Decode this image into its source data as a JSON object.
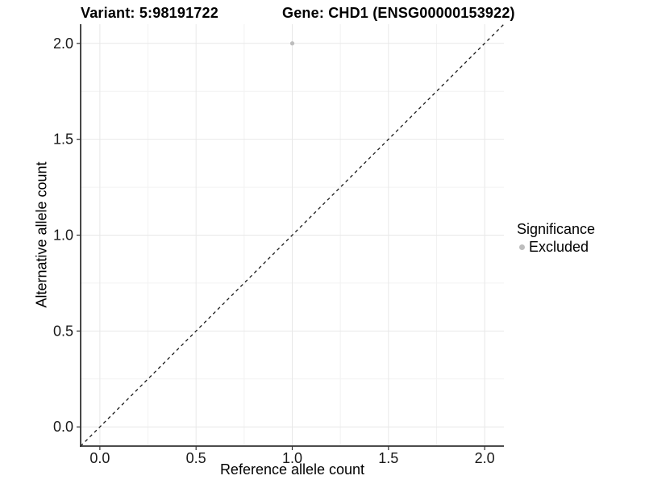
{
  "header": {
    "variant_title": "Variant: 5:98191722",
    "gene_title": "Gene: CHD1 (ENSG00000153922)"
  },
  "chart_data": {
    "type": "scatter",
    "title": "Variant: 5:98191722   Gene: CHD1 (ENSG00000153922)",
    "xlabel": "Reference allele count",
    "ylabel": "Alternative allele count",
    "xlim": [
      0,
      2
    ],
    "ylim": [
      0,
      2
    ],
    "expansion": 0.05,
    "xticks": [
      0,
      0.5,
      1,
      1.5,
      2
    ],
    "yticks": [
      0,
      0.5,
      1,
      1.5,
      2
    ],
    "xtick_labels": [
      "0.0",
      "0.5",
      "1.0",
      "1.5",
      "2.0"
    ],
    "ytick_labels": [
      "0.0",
      "0.5",
      "1.0",
      "1.5",
      "2.0"
    ],
    "minor_xticks": [
      0.25,
      0.75,
      1.25,
      1.75
    ],
    "minor_yticks": [
      0.25,
      0.75,
      1.25,
      1.75
    ],
    "grid": true,
    "legend_position": "right",
    "points": [
      {
        "x": 1.0,
        "y": 2.0,
        "series": "Excluded"
      }
    ],
    "identity_line": {
      "equation": "y = x",
      "style": "dashed"
    },
    "legend": {
      "title": "Significance",
      "entries": [
        {
          "label": "Excluded",
          "color": "#bdbdbd",
          "marker": "circle"
        }
      ]
    }
  },
  "colors": {
    "background": "#ffffff",
    "point": "#bdbdbd",
    "grid_major": "#e8e8e8",
    "grid_minor": "#f2f2f2",
    "axis_line": "#333333",
    "tick_text": "#1a1a1a",
    "title_text": "#000000",
    "dashed_line": "#1a1a1a"
  }
}
